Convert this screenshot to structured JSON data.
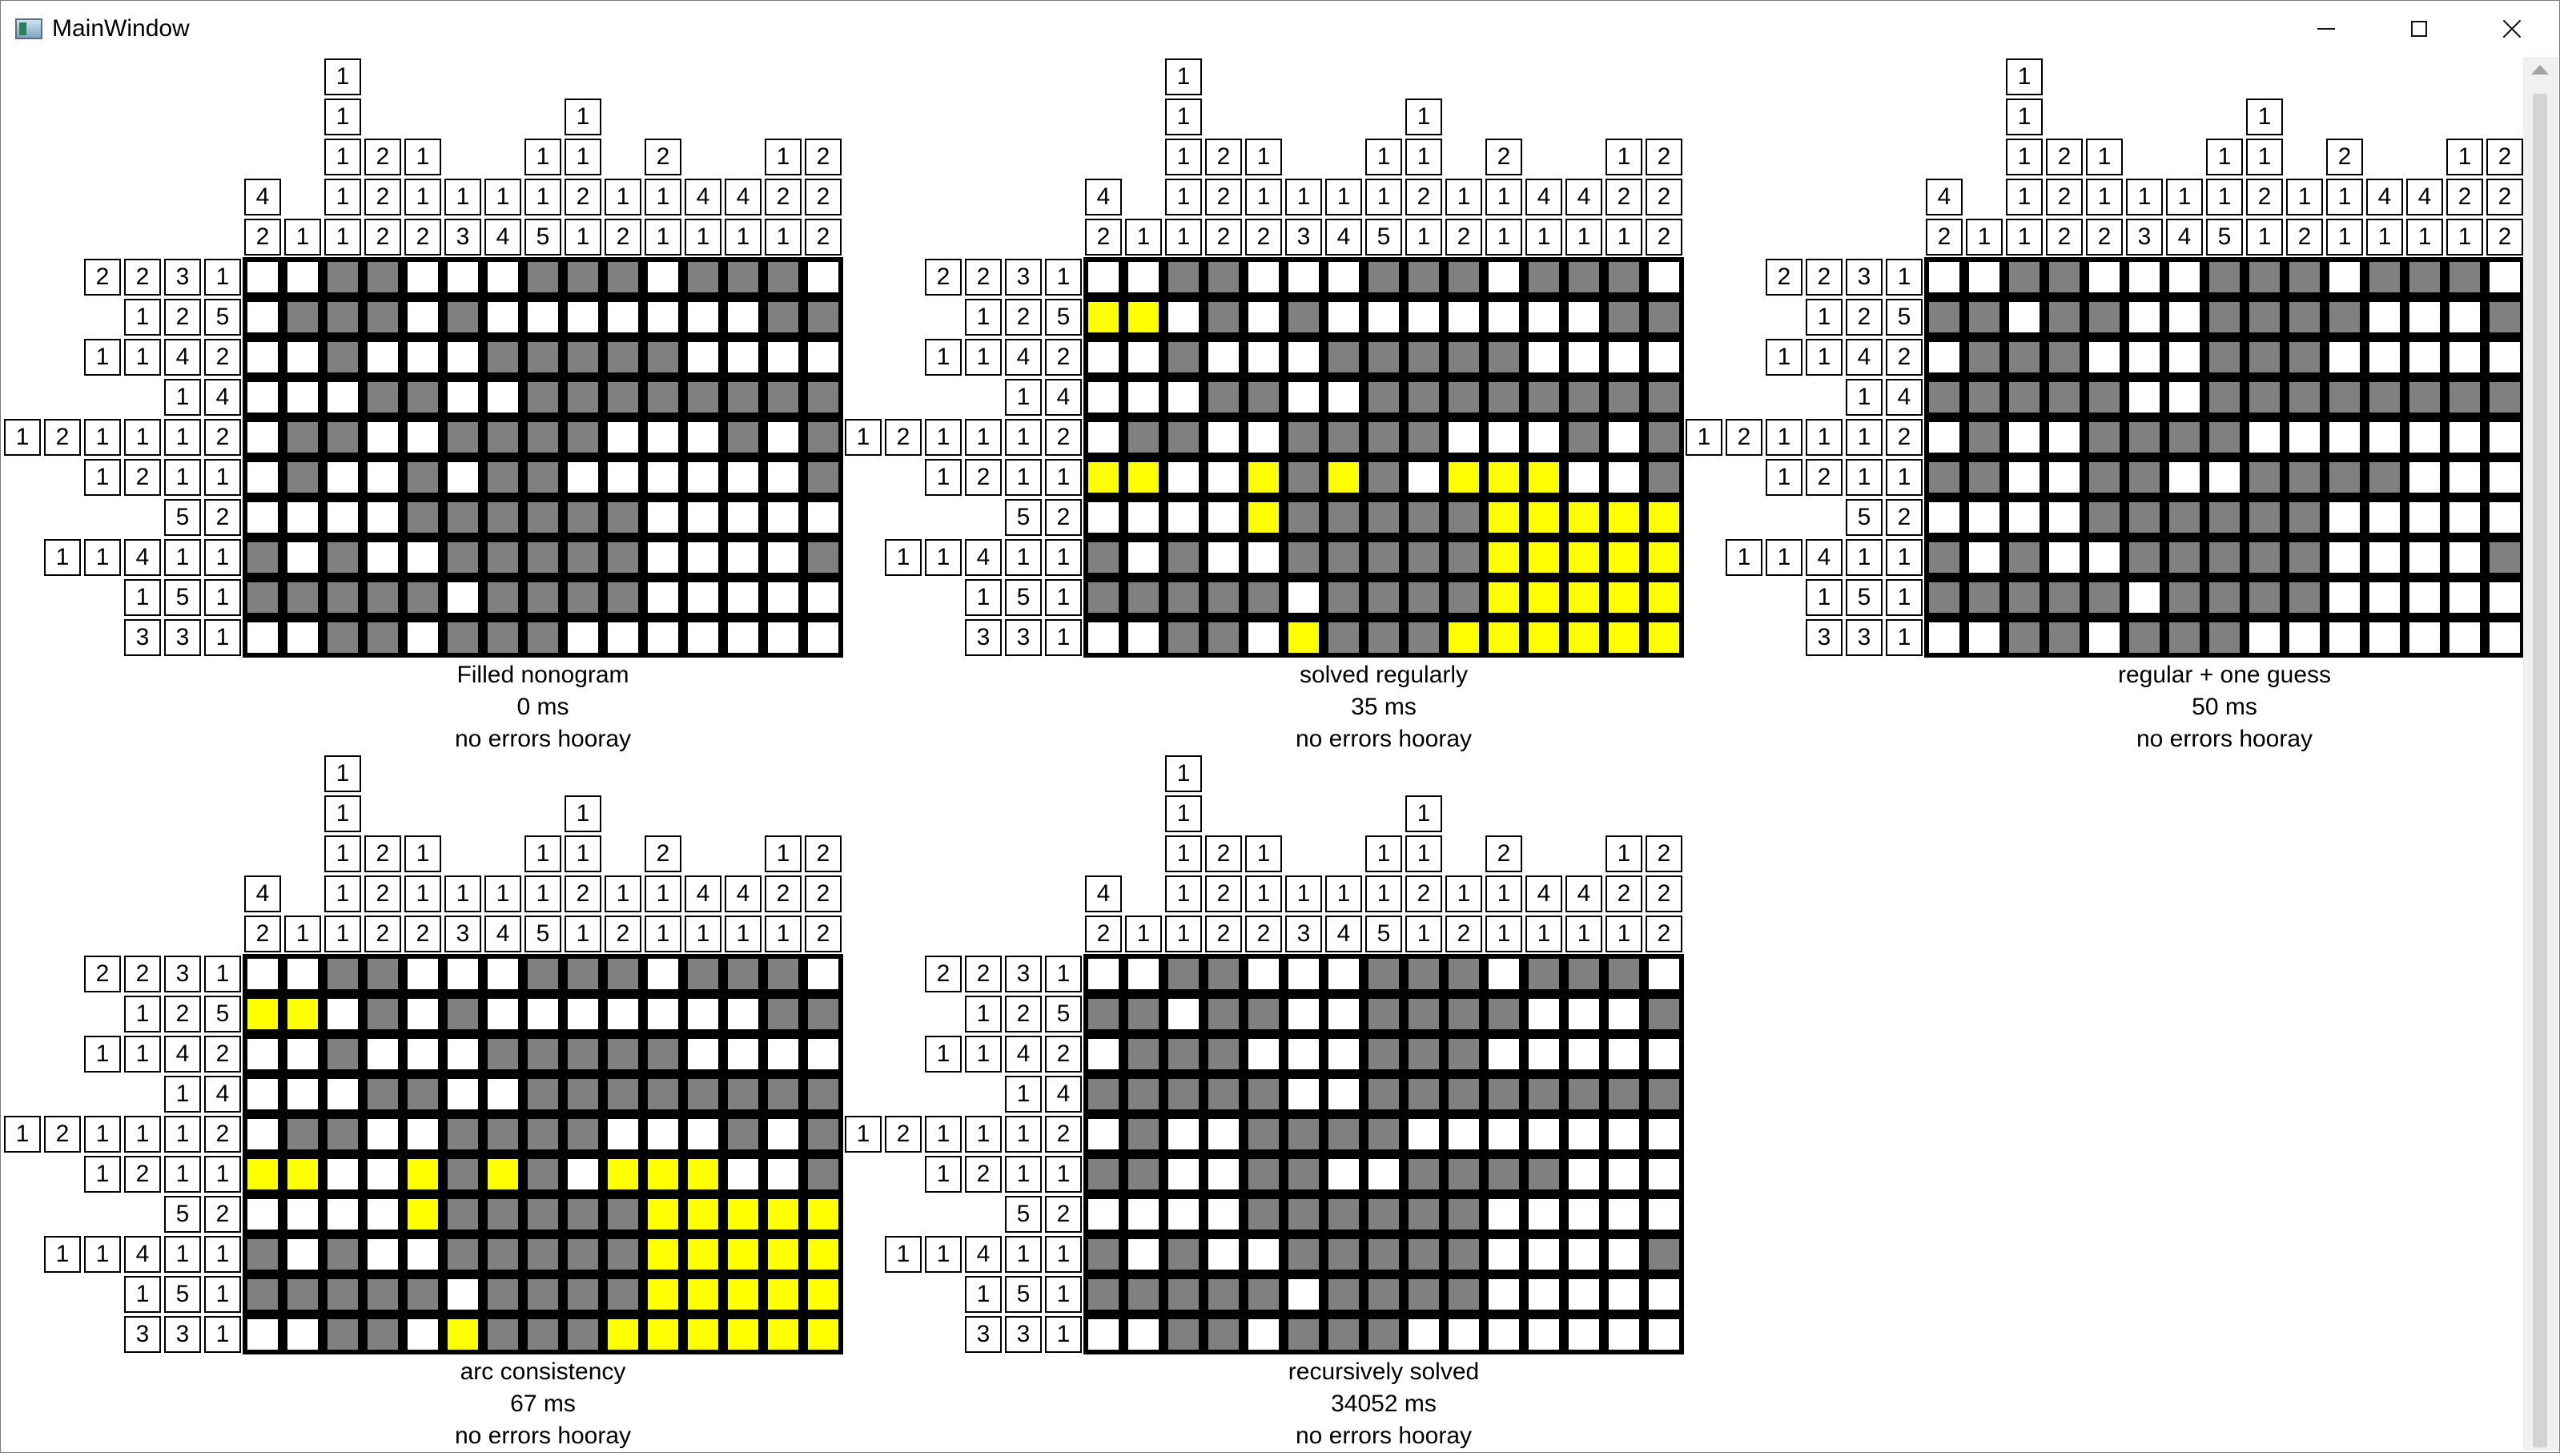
{
  "window": {
    "title": "MainWindow",
    "controls": {
      "minimize": "minimize-icon",
      "maximize": "maximize-icon",
      "close": "close-icon"
    }
  },
  "colors": {
    "filled": "#808080",
    "empty": "#ffffff",
    "highlight": "#ffff00",
    "grid": "#000000"
  },
  "nonogram": {
    "column_clues": [
      [
        "4",
        "2"
      ],
      [
        "1"
      ],
      [
        "1",
        "1",
        "1",
        "1",
        "1"
      ],
      [
        "2",
        "2",
        "2"
      ],
      [
        "1",
        "1",
        "2"
      ],
      [
        "1",
        "3"
      ],
      [
        "1",
        "4"
      ],
      [
        "1",
        "1",
        "5"
      ],
      [
        "1",
        "1",
        "2",
        "1"
      ],
      [
        "1",
        "2"
      ],
      [
        "2",
        "1",
        "1"
      ],
      [
        "4",
        "1"
      ],
      [
        "4",
        "1"
      ],
      [
        "1",
        "2",
        "1"
      ],
      [
        "2",
        "2",
        "2"
      ]
    ],
    "row_clues": [
      [
        "2",
        "2",
        "3",
        "1"
      ],
      [
        "1",
        "2",
        "5"
      ],
      [
        "1",
        "1",
        "4",
        "2"
      ],
      [
        "1",
        "4"
      ],
      [
        "1",
        "2",
        "1",
        "1",
        "1",
        "2"
      ],
      [
        "1",
        "2",
        "1",
        "1"
      ],
      [
        "5",
        "2"
      ],
      [
        "1",
        "1",
        "4",
        "1",
        "1"
      ],
      [
        "1",
        "5",
        "1"
      ],
      [
        "3",
        "3",
        "1"
      ]
    ]
  },
  "panels": [
    {
      "title": "Filled nonogram",
      "time": "0 ms",
      "status": "no errors hooray",
      "cells": [
        "eeffeeefffefffe",
        "efffefeeeeeeeff",
        "eefeeefffffeeee",
        "eeeffeeffffffff",
        "effeeffffeeefef",
        "efeefeffeeeeeef",
        "eeeeffffffeeeee",
        "fefeefffffeeeef",
        "fffffeffffeeeee",
        "eeffefffeeeeeee"
      ]
    },
    {
      "title": "solved regularly",
      "time": "35 ms",
      "status": "no errors hooray",
      "cells": [
        "eeffeeefffefffe",
        "yyefefeeeeeeeff",
        "eefeeefffffeeee",
        "eeeffeeffffffff",
        "effeeffffeeefef",
        "yyeeyfyfeyyyeef",
        "eeeeyfffffyyyyy",
        "fefeefffffyyyyy",
        "fffffeffffyyyyy",
        "eeffeyfffyyyyyy"
      ]
    },
    {
      "title": "regular + one guess",
      "time": "50 ms",
      "status": "no errors hooray",
      "cells": [
        "eeffeeefffefffe",
        "ffeffeeffffeeef",
        "efffeeefffeeeee",
        "fffffeeffffffff",
        "efeeffffeeeeeee",
        "ffeeffeeffffeee",
        "eeeeffffffeeeee",
        "fefeefffffeeeef",
        "fffffeffffeeeee",
        "eeffefffeeeeeee"
      ]
    },
    {
      "title": "arc consistency",
      "time": "67 ms",
      "status": "no errors hooray",
      "cells": [
        "eeffeeefffefffe",
        "yyefefeeeeeeeff",
        "eefeeefffffeeee",
        "eeeffeeffffffff",
        "effeeffffeeefef",
        "yyeeyfyfeyyyeef",
        "eeeeyfffffyyyyy",
        "fefeefffffyyyyy",
        "fffffeffffyyyyy",
        "eeffeyfffyyyyyy"
      ]
    },
    {
      "title": "recursively solved",
      "time": "34052 ms",
      "status": "no errors hooray",
      "cells": [
        "eeffeeefffefffe",
        "ffeffeeffffeeef",
        "efffeeefffeeeee",
        "fffffeeffffffff",
        "efeeffffeeeeeee",
        "ffeeffeeffffeee",
        "eeeeffffffeeeee",
        "fefeefffffeeeef",
        "fffffeffffeeeee",
        "eeffefffeeeeeee"
      ]
    }
  ]
}
